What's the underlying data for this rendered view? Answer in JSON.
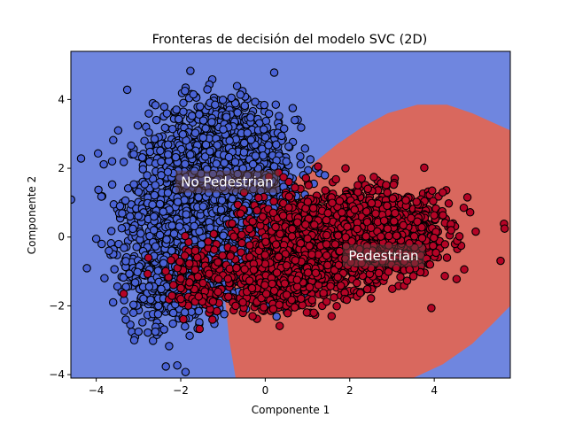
{
  "chart_data": {
    "type": "scatter",
    "title": "Fronteras de decisión del modelo SVC (2D)",
    "xlabel": "Componente 1",
    "ylabel": "Componente 2",
    "xlim": [
      -4.6,
      5.8
    ],
    "ylim": [
      -4.1,
      5.4
    ],
    "x_ticks": [
      -4,
      -2,
      0,
      2,
      4
    ],
    "y_ticks": [
      -4,
      -2,
      0,
      2,
      4
    ],
    "grid": false,
    "colors": {
      "region_no_pedestrian": "#6f86df",
      "region_pedestrian": "#d9685e",
      "points_no_pedestrian": "#4a63d6",
      "points_pedestrian": "#b40426",
      "point_edge": "#000000",
      "annotation_box": "#5e3c3c"
    },
    "region_labels": [
      {
        "text": "No Pedestrian",
        "x": -0.9,
        "y": 1.6
      },
      {
        "text": "Pedestrian",
        "x": 2.8,
        "y": -0.55
      }
    ],
    "decision_boundary": [
      [
        5.8,
        3.1
      ],
      [
        4.9,
        3.6
      ],
      [
        4.3,
        3.85
      ],
      [
        3.6,
        3.85
      ],
      [
        2.9,
        3.6
      ],
      [
        2.3,
        3.2
      ],
      [
        1.7,
        2.7
      ],
      [
        1.2,
        2.2
      ],
      [
        0.7,
        1.7
      ],
      [
        0.2,
        1.0
      ],
      [
        -0.4,
        0.1
      ],
      [
        -0.8,
        -0.8
      ],
      [
        -0.95,
        -1.8
      ],
      [
        -0.85,
        -3.0
      ],
      [
        -0.7,
        -4.1
      ],
      [
        3.5,
        -4.1
      ],
      [
        4.2,
        -3.7
      ],
      [
        4.9,
        -3.1
      ],
      [
        5.4,
        -2.5
      ],
      [
        5.8,
        -2.0
      ]
    ],
    "series": [
      {
        "name": "No Pedestrian",
        "color": "#4a63d6",
        "clusters": [
          {
            "cx": -1.4,
            "cy": 0.9,
            "sx": 0.85,
            "sy": 1.2,
            "n": 1800
          },
          {
            "cx": -0.9,
            "cy": 2.6,
            "sx": 0.7,
            "sy": 0.8,
            "n": 500
          },
          {
            "cx": -2.4,
            "cy": -1.0,
            "sx": 0.5,
            "sy": 0.9,
            "n": 350
          },
          {
            "cx": -0.1,
            "cy": 0.5,
            "sx": 0.6,
            "sy": 0.9,
            "n": 300
          }
        ],
        "points": [
          [
            -1.9,
            4.25
          ],
          [
            -1.7,
            4.15
          ],
          [
            -0.8,
            4.05
          ],
          [
            0.25,
            3.85
          ],
          [
            0.65,
            3.75
          ],
          [
            0.7,
            3.4
          ],
          [
            -4.0,
            -0.05
          ],
          [
            -3.7,
            -0.4
          ],
          [
            -3.6,
            -1.9
          ],
          [
            -3.1,
            -3.0
          ],
          [
            -3.0,
            -2.75
          ],
          [
            -3.3,
            -2.4
          ],
          [
            -2.6,
            -2.75
          ],
          [
            -1.9,
            -2.6
          ],
          [
            -1.2,
            -2.35
          ],
          [
            -3.4,
            -1.6
          ],
          [
            0.9,
            1.8
          ],
          [
            1.15,
            1.55
          ],
          [
            1.2,
            2.0
          ],
          [
            0.5,
            2.2
          ],
          [
            -2.3,
            2.4
          ],
          [
            -3.2,
            0.6
          ],
          [
            -3.3,
            -0.7
          ]
        ]
      },
      {
        "name": "Pedestrian",
        "color": "#b40426",
        "clusters": [
          {
            "cx": 1.5,
            "cy": -0.1,
            "sx": 0.95,
            "sy": 0.65,
            "n": 1500
          },
          {
            "cx": 2.8,
            "cy": 0.2,
            "sx": 0.8,
            "sy": 0.55,
            "n": 600
          },
          {
            "cx": -1.4,
            "cy": -1.2,
            "sx": 0.45,
            "sy": 0.5,
            "n": 150
          },
          {
            "cx": 0.3,
            "cy": -1.3,
            "sx": 0.6,
            "sy": 0.45,
            "n": 300
          }
        ],
        "points": [
          [
            4.7,
            0.85
          ],
          [
            4.85,
            0.72
          ],
          [
            4.2,
            1.3
          ],
          [
            3.95,
            1.35
          ],
          [
            1.9,
            2.0
          ],
          [
            1.25,
            2.05
          ],
          [
            -3.35,
            -1.65
          ],
          [
            -1.25,
            -2.4
          ],
          [
            -0.3,
            -2.3
          ],
          [
            1.15,
            -2.2
          ],
          [
            3.6,
            0.45
          ],
          [
            4.4,
            0.2
          ],
          [
            3.9,
            -0.8
          ],
          [
            -2.0,
            -1.8
          ],
          [
            -0.7,
            -2.0
          ]
        ]
      }
    ]
  }
}
